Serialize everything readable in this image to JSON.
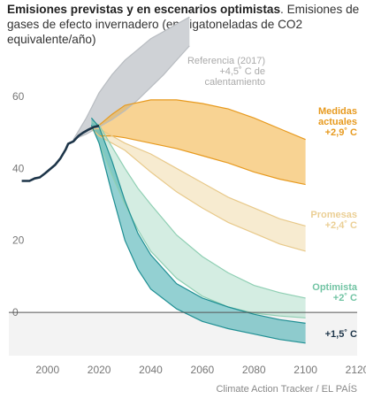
{
  "header": {
    "title": "Emisiones previstas y en escenarios optimistas",
    "subtitle": ". Emisiones de gases de efecto invernadero (en gigatoneladas de CO2 equivalente/año)"
  },
  "source": "Climate Action Tracker / EL PAÍS",
  "colors": {
    "historical": "#1d3549",
    "reference": "#cfd2d6",
    "current": "#f2ae3b",
    "pledges": "#efd8a2",
    "optimistic": "#a9dcc5",
    "one_five": "#3aaaad",
    "negative_zone": "#f3f3f3"
  },
  "chart_data": {
    "type": "area",
    "title": "Emisiones previstas y en escenarios optimistas",
    "xlabel": "",
    "ylabel": "",
    "xlim": [
      1985,
      2120
    ],
    "ylim": [
      -12,
      72
    ],
    "x_ticks": [
      2000,
      2020,
      2040,
      2060,
      2080,
      2100,
      2120
    ],
    "y_ticks": [
      0,
      20,
      40,
      60
    ],
    "grid": false,
    "historical": {
      "x": [
        1990,
        1993,
        1995,
        1997,
        1999,
        2001,
        2003,
        2005,
        2007,
        2008,
        2010,
        2012,
        2014,
        2016,
        2018,
        2020
      ],
      "y": [
        36.5,
        36.5,
        37.2,
        37.5,
        38.6,
        39.8,
        41,
        42.8,
        45.2,
        46.8,
        47.5,
        49,
        50,
        50.8,
        51.5,
        51.8
      ]
    },
    "series": [
      {
        "key": "reference",
        "label_lines": [
          "Referencia (2017)",
          "+4,5˚ C de",
          "calentamiento"
        ],
        "x": [
          2010,
          2015,
          2020,
          2025,
          2030,
          2035,
          2040,
          2045,
          2050,
          2055
        ],
        "upper": [
          48,
          54,
          61,
          66,
          70,
          73,
          76,
          78,
          80,
          82
        ],
        "lower": [
          48,
          49.5,
          51.5,
          53.5,
          56,
          59,
          62.5,
          66,
          70,
          74
        ]
      },
      {
        "key": "current",
        "label_lines": [
          "Medidas",
          "actuales",
          "+2,9˚ C"
        ],
        "x": [
          2017,
          2020,
          2025,
          2030,
          2040,
          2050,
          2060,
          2070,
          2080,
          2090,
          2100
        ],
        "upper": [
          51,
          52,
          55,
          57.5,
          59,
          59,
          58,
          56.5,
          54,
          51,
          48
        ],
        "lower": [
          51,
          49,
          49,
          48.5,
          47,
          45.5,
          43.5,
          41.5,
          39,
          37,
          35.5
        ]
      },
      {
        "key": "pledges",
        "label_lines": [
          "Promesas",
          "+2,4˚ C"
        ],
        "x": [
          2017,
          2020,
          2025,
          2030,
          2040,
          2050,
          2060,
          2070,
          2080,
          2090,
          2100
        ],
        "upper": [
          51,
          51,
          49,
          47,
          44,
          40,
          36,
          32,
          29,
          26,
          24
        ],
        "lower": [
          51,
          49,
          47,
          45,
          39,
          33.5,
          29,
          25,
          22,
          19,
          17
        ]
      },
      {
        "key": "optimistic",
        "label_lines": [
          "Optimista",
          "+2˚ C"
        ],
        "x": [
          2017,
          2020,
          2025,
          2030,
          2035,
          2040,
          2050,
          2060,
          2070,
          2080,
          2090,
          2100
        ],
        "upper": [
          53,
          52,
          46,
          40,
          34.5,
          30,
          21.5,
          15.5,
          11,
          7.5,
          5.5,
          4
        ],
        "lower": [
          52,
          47,
          38,
          30,
          23,
          17,
          9.5,
          4.5,
          1.5,
          -0.2,
          -1,
          -1.5
        ]
      },
      {
        "key": "one_five",
        "label_lines": [
          "+1,5˚ C"
        ],
        "x": [
          2017,
          2020,
          2025,
          2030,
          2035,
          2040,
          2050,
          2060,
          2070,
          2080,
          2090,
          2100
        ],
        "upper": [
          54,
          51.5,
          42,
          31,
          22,
          16,
          8,
          4,
          1.5,
          -0.5,
          -2,
          -3
        ],
        "lower": [
          52,
          47,
          33,
          20,
          12,
          6.5,
          1,
          -2.5,
          -4.5,
          -6,
          -7.5,
          -8.5
        ]
      }
    ]
  }
}
